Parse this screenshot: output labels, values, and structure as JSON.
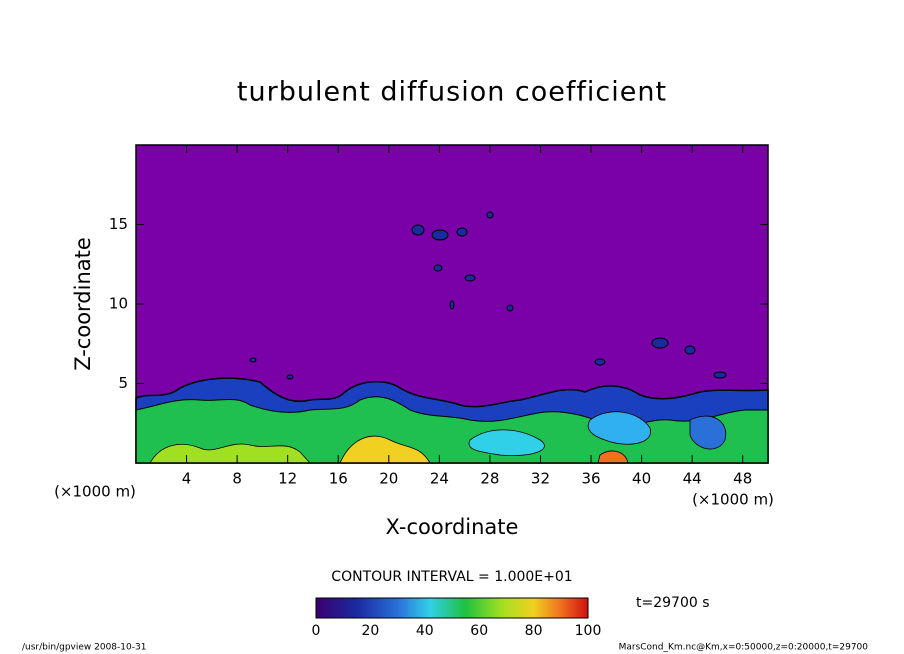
{
  "chart_data": {
    "type": "contour",
    "title": "turbulent diffusion coefficient",
    "xlabel": "X-coordinate",
    "ylabel": "Z-coordinate",
    "x_unit": "(×1000 m)",
    "xlim": [
      0,
      50
    ],
    "xticks": [
      4,
      8,
      12,
      16,
      20,
      24,
      28,
      32,
      36,
      40,
      44,
      48
    ],
    "ylim": [
      0,
      20
    ],
    "yticks": [
      5,
      10,
      15
    ],
    "contour_interval_text": "CONTOUR INTERVAL = 1.000E+01",
    "time_text": "t=29700 s",
    "colorbar": {
      "lim": [
        0,
        100
      ],
      "ticks": [
        0,
        20,
        40,
        60,
        80,
        100
      ]
    },
    "footer_left": "/usr/bin/gpview   2008-10-31",
    "footer_right": "MarsCond_Km.nc@Km,x=0:50000,z=0:20000,t=29700"
  }
}
